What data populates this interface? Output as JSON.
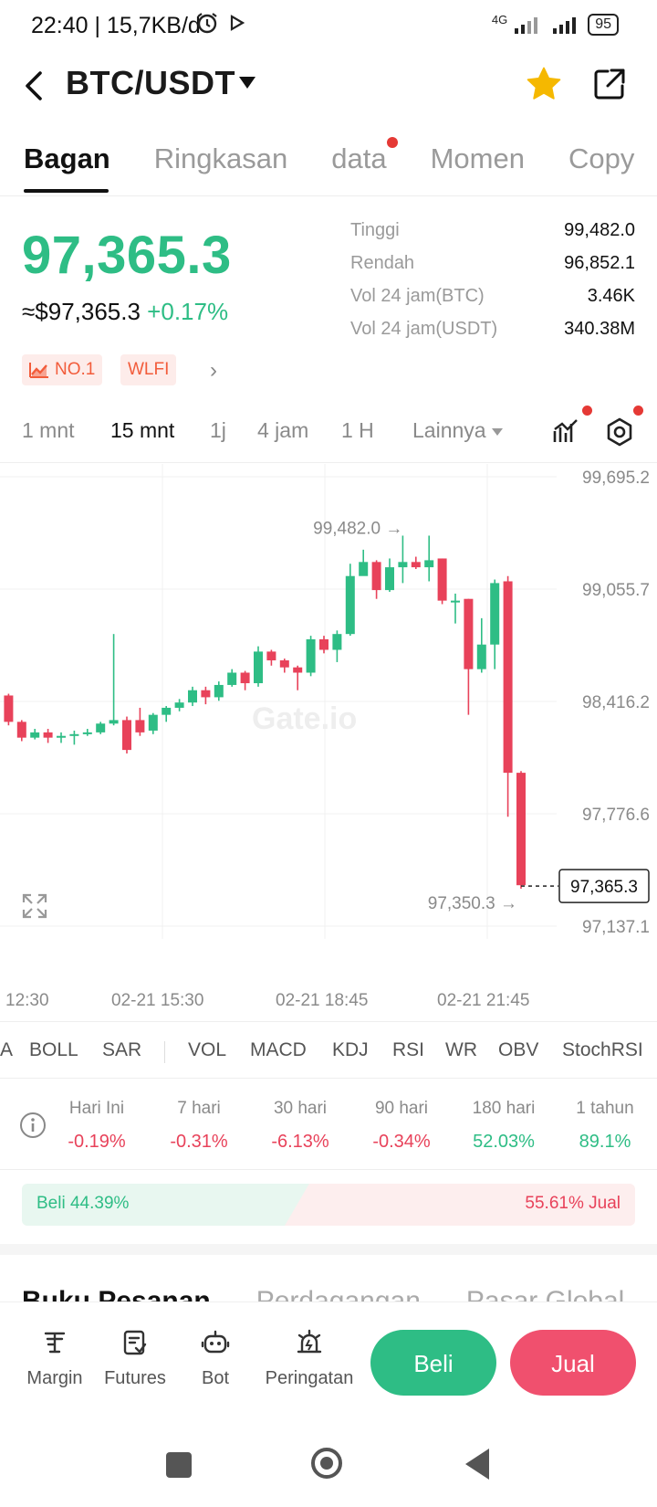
{
  "status": {
    "time": "22:40 | 15,7KB/d",
    "network": "4G",
    "battery": "95"
  },
  "header": {
    "title": "BTC/USDT"
  },
  "tabs": [
    {
      "label": "Bagan"
    },
    {
      "label": "Ringkasan"
    },
    {
      "label": "data"
    },
    {
      "label": "Momen"
    },
    {
      "label": "Copy"
    }
  ],
  "price": {
    "last": "97,365.3",
    "usd": "≈$97,365.3",
    "change": "+0.17%",
    "stats": [
      {
        "label": "Tinggi",
        "value": "99,482.0"
      },
      {
        "label": "Rendah",
        "value": "96,852.1"
      },
      {
        "label": "Vol 24 jam(BTC)",
        "value": "3.46K"
      },
      {
        "label": "Vol 24 jam(USDT)",
        "value": "340.38M"
      }
    ],
    "tags": [
      "NO.1",
      "WLFI"
    ]
  },
  "timeframes": {
    "items": [
      "1 mnt",
      "15 mnt",
      "1j",
      "4 jam",
      "1 H"
    ],
    "more": "Lainnya",
    "active": "15 mnt"
  },
  "chart_data": {
    "type": "candlestick",
    "y_ticks": [
      "99,695.2",
      "99,055.7",
      "98,416.2",
      "97,776.6",
      "97,137.1"
    ],
    "ylim": [
      97137.1,
      99695.2
    ],
    "x_ticks": [
      "12:30",
      "02-21 15:30",
      "02-21 18:45",
      "02-21 21:45"
    ],
    "high_label": "99,482.0",
    "low_label": "97,350.3",
    "last_price_label": "97,365.3",
    "watermark": "Gate.io",
    "candles": [
      [
        98330,
        98310,
        98350,
        98260
      ],
      [
        98310,
        98320,
        98340,
        98290
      ],
      [
        98320,
        98350,
        98370,
        98300
      ],
      [
        98350,
        98340,
        98370,
        98320
      ],
      [
        98340,
        98360,
        98380,
        98330
      ],
      [
        98360,
        98380,
        98390,
        98340
      ],
      [
        98380,
        98450,
        98470,
        98370
      ],
      [
        98450,
        98300,
        98460,
        98280
      ],
      [
        98300,
        98210,
        98310,
        98190
      ],
      [
        98210,
        98240,
        98260,
        98200
      ],
      [
        98240,
        98210,
        98260,
        98180
      ],
      [
        98210,
        98220,
        98240,
        98180
      ],
      [
        98220,
        98230,
        98250,
        98170
      ],
      [
        98230,
        98240,
        98260,
        98220
      ],
      [
        98240,
        98290,
        98300,
        98230
      ],
      [
        98290,
        98310,
        98800,
        98280
      ],
      [
        98310,
        98140,
        98330,
        98120
      ],
      [
        98310,
        98240,
        98380,
        98220
      ],
      [
        98250,
        98340,
        98350,
        98230
      ],
      [
        98340,
        98380,
        98390,
        98300
      ],
      [
        98380,
        98410,
        98430,
        98360
      ],
      [
        98410,
        98480,
        98500,
        98390
      ],
      [
        98480,
        98440,
        98500,
        98400
      ],
      [
        98440,
        98510,
        98530,
        98420
      ],
      [
        98510,
        98580,
        98600,
        98500
      ],
      [
        98580,
        98520,
        98590,
        98480
      ],
      [
        98520,
        98700,
        98730,
        98500
      ],
      [
        98700,
        98650,
        98710,
        98620
      ],
      [
        98650,
        98610,
        98660,
        98580
      ],
      [
        98610,
        98580,
        98620,
        98480
      ],
      [
        98580,
        98770,
        98790,
        98560
      ],
      [
        98770,
        98710,
        98790,
        98690
      ],
      [
        98710,
        98800,
        98820,
        98640
      ],
      [
        98800,
        99130,
        99200,
        98790
      ],
      [
        99130,
        99210,
        99280,
        99190
      ],
      [
        99210,
        99050,
        99220,
        99000
      ],
      [
        99050,
        99180,
        99230,
        99040
      ],
      [
        99180,
        99210,
        99360,
        99090
      ],
      [
        99210,
        99180,
        99240,
        99170
      ],
      [
        99180,
        99220,
        99360,
        99100
      ],
      [
        99230,
        98990,
        99230,
        98970
      ],
      [
        98990,
        98990,
        99030,
        98860
      ],
      [
        99000,
        98600,
        99000,
        98340
      ],
      [
        98600,
        98740,
        98890,
        98580
      ],
      [
        98740,
        99090,
        99110,
        98600
      ],
      [
        99100,
        98010,
        99130,
        97760
      ],
      [
        98010,
        97370,
        98020,
        97350
      ]
    ]
  },
  "indicators": [
    "A",
    "BOLL",
    "SAR",
    "VOL",
    "MACD",
    "KDJ",
    "RSI",
    "WR",
    "OBV",
    "StochRSI"
  ],
  "performance": [
    {
      "label": "Hari Ini",
      "value": "-0.19%",
      "dir": "neg"
    },
    {
      "label": "7 hari",
      "value": "-0.31%",
      "dir": "neg"
    },
    {
      "label": "30 hari",
      "value": "-6.13%",
      "dir": "neg"
    },
    {
      "label": "90 hari",
      "value": "-0.34%",
      "dir": "neg"
    },
    {
      "label": "180 hari",
      "value": "52.03%",
      "dir": "pos"
    },
    {
      "label": "1 tahun",
      "value": "89.1%",
      "dir": "pos"
    }
  ],
  "ratio": {
    "buy_label": "Beli 44.39%",
    "sell_label": "55.61% Jual",
    "buy_pct": 44.39
  },
  "section_tabs": [
    "Buku Pesanan",
    "Perdagangan",
    "Pasar Global"
  ],
  "toolbar": {
    "items": [
      {
        "label": "Margin",
        "icon": "margin-icon"
      },
      {
        "label": "Futures",
        "icon": "futures-icon"
      },
      {
        "label": "Bot",
        "icon": "bot-icon"
      },
      {
        "label": "Peringatan",
        "icon": "alert-icon"
      }
    ],
    "buy": "Beli",
    "sell": "Jual"
  },
  "colors": {
    "up": "#2ebd85",
    "down": "#e8425a",
    "accent_star": "#f5b800"
  }
}
